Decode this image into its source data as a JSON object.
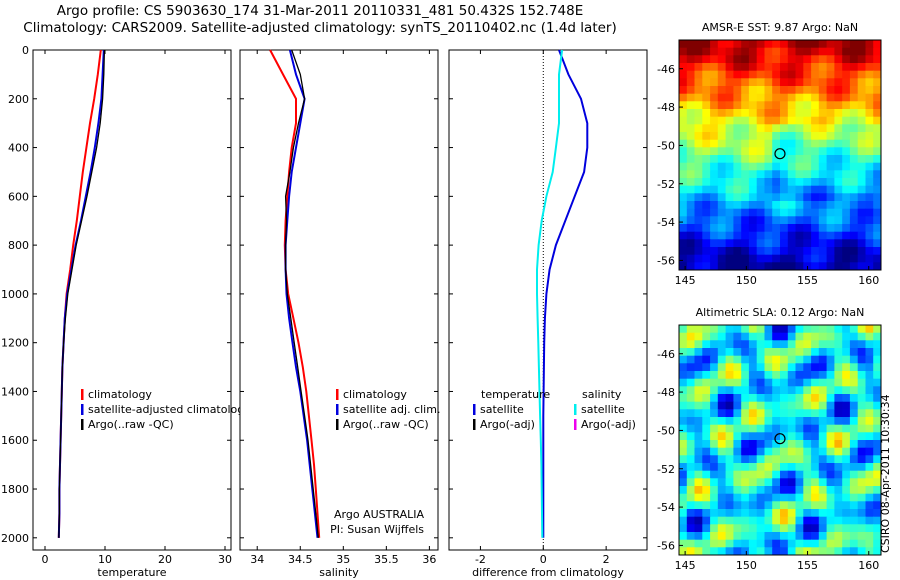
{
  "header": {
    "line1": "Argo profile: CS 5903630_174 31-Mar-2011 20110331_481 50.432S 152.748E",
    "line2": "Climatology: CARS2009. Satellite-adjusted climatology: synTS_20110402.nc (1.4d later)"
  },
  "side_stamp": "CSIRO 08-Apr-2011 10:30:34",
  "colors": {
    "red": "#ff0000",
    "blue": "#0000dd",
    "black": "#000000",
    "cyan": "#00eeee",
    "magenta": "#ee00ee"
  },
  "chart_data": [
    {
      "type": "line",
      "panel": "temperature",
      "xlabel": "temperature",
      "xlim": [
        -2,
        31
      ],
      "xticks": [
        0,
        10,
        20,
        30
      ],
      "ylim": [
        2050,
        0
      ],
      "yticks": [
        0,
        200,
        400,
        600,
        800,
        1000,
        1200,
        1400,
        1600,
        1800,
        2000
      ],
      "y": [
        0,
        100,
        200,
        300,
        400,
        500,
        600,
        700,
        800,
        900,
        1000,
        1100,
        1200,
        1300,
        1400,
        1500,
        1600,
        1700,
        1800,
        1900,
        2000
      ],
      "series": [
        {
          "name": "climatology",
          "color": "red",
          "values": [
            9.3,
            8.8,
            8.2,
            7.5,
            6.9,
            6.3,
            5.8,
            5.3,
            4.7,
            4.2,
            3.6,
            3.3,
            3.1,
            2.9,
            2.8,
            2.7,
            2.6,
            2.5,
            2.4,
            2.4,
            2.3
          ]
        },
        {
          "name": "satellite-adjusted climatology",
          "color": "blue",
          "values": [
            9.8,
            9.6,
            9.4,
            8.9,
            8.3,
            7.6,
            6.8,
            6.0,
            5.1,
            4.4,
            3.7,
            3.3,
            3.1,
            2.9,
            2.8,
            2.7,
            2.6,
            2.5,
            2.4,
            2.4,
            2.3
          ]
        },
        {
          "name": "Argo(..raw -QC)",
          "color": "black",
          "values": [
            9.9,
            9.8,
            9.6,
            9.2,
            8.6,
            7.8,
            7.0,
            6.1,
            5.2,
            4.5,
            3.8,
            3.4,
            3.1,
            2.9,
            2.8,
            2.7,
            2.6,
            2.5,
            2.4,
            2.4,
            2.3
          ]
        }
      ],
      "legend": [
        "climatology",
        "satellite-adjusted climatology",
        "Argo(..raw -QC)"
      ]
    },
    {
      "type": "line",
      "panel": "salinity",
      "xlabel": "salinity",
      "xlim": [
        33.8,
        36.1
      ],
      "xticks": [
        34,
        34.5,
        35,
        35.5,
        36
      ],
      "ylim": [
        2050,
        0
      ],
      "y": [
        0,
        100,
        200,
        300,
        400,
        500,
        600,
        700,
        800,
        900,
        1000,
        1100,
        1200,
        1300,
        1400,
        1500,
        1600,
        1700,
        1800,
        1900,
        2000
      ],
      "series": [
        {
          "name": "climatology",
          "color": "red",
          "values": [
            34.15,
            34.3,
            34.45,
            34.45,
            34.4,
            34.37,
            34.35,
            34.33,
            34.32,
            34.33,
            34.36,
            34.42,
            34.48,
            34.53,
            34.57,
            34.6,
            34.63,
            34.66,
            34.68,
            34.7,
            34.72
          ]
        },
        {
          "name": "satellite adj. clim.",
          "color": "blue",
          "values": [
            34.38,
            34.45,
            34.55,
            34.5,
            34.45,
            34.4,
            34.37,
            34.35,
            34.33,
            34.33,
            34.34,
            34.37,
            34.41,
            34.45,
            34.5,
            34.54,
            34.58,
            34.61,
            34.64,
            34.67,
            34.7
          ]
        },
        {
          "name": "Argo(..raw -QC)",
          "color": "black",
          "values": [
            34.4,
            34.5,
            34.55,
            34.48,
            34.42,
            34.38,
            34.33,
            34.34,
            34.33,
            34.33,
            34.35,
            34.39,
            34.43,
            34.47,
            34.51,
            34.55,
            34.59,
            34.62,
            34.65,
            34.68,
            34.71
          ]
        }
      ],
      "legend": [
        "climatology",
        "satellite adj. clim.",
        "Argo(..raw -QC)"
      ],
      "annotation": [
        "Argo AUSTRALIA",
        "PI: Susan Wijffels"
      ]
    },
    {
      "type": "line",
      "panel": "difference",
      "xlabel": "difference from climatology",
      "xlim": [
        -3,
        3.3
      ],
      "xticks": [
        -2,
        0,
        2
      ],
      "ylim": [
        2050,
        0
      ],
      "y": [
        0,
        100,
        200,
        300,
        400,
        500,
        600,
        700,
        800,
        900,
        1000,
        1100,
        1200,
        1300,
        1400,
        1500,
        1600,
        1700,
        1800,
        1900,
        2000
      ],
      "series": [
        {
          "name": "temperature satellite",
          "color": "blue",
          "values": [
            0.5,
            0.8,
            1.2,
            1.4,
            1.4,
            1.3,
            1.0,
            0.7,
            0.4,
            0.2,
            0.1,
            0.05,
            0.03,
            0.02,
            0.01,
            0.0,
            0.0,
            0.0,
            0.0,
            0.0,
            0.0
          ]
        },
        {
          "name": "salinity satellite",
          "color": "cyan",
          "values": [
            0.6,
            0.5,
            0.5,
            0.5,
            0.4,
            0.3,
            0.1,
            -0.05,
            -0.15,
            -0.2,
            -0.2,
            -0.18,
            -0.16,
            -0.14,
            -0.12,
            -0.1,
            -0.08,
            -0.06,
            -0.05,
            -0.04,
            -0.03
          ]
        }
      ],
      "legend": {
        "temperature_header": "temperature",
        "salinity_header": "salinity",
        "temperature": [
          "satellite",
          "Argo(-adj)"
        ],
        "salinity": [
          "satellite",
          "Argo(-adj)"
        ]
      }
    },
    {
      "type": "heatmap",
      "panel": "sst",
      "title": "AMSR-E SST: 9.87 Argo: NaN",
      "xlim": [
        144.5,
        161
      ],
      "ylim": [
        -56.5,
        -44.5
      ],
      "xticks": [
        145,
        150,
        155,
        160
      ],
      "yticks": [
        -46,
        -48,
        -50,
        -52,
        -54,
        -56
      ],
      "argo_point": [
        152.748,
        -50.432
      ]
    },
    {
      "type": "heatmap",
      "panel": "sla",
      "title": "Altimetric SLA: 0.12 Argo: NaN",
      "xlim": [
        144.5,
        161
      ],
      "ylim": [
        -56.5,
        -44.5
      ],
      "xticks": [
        145,
        150,
        155,
        160
      ],
      "yticks": [
        -46,
        -48,
        -50,
        -52,
        -54,
        -56
      ],
      "argo_point": [
        152.748,
        -50.432
      ]
    }
  ]
}
